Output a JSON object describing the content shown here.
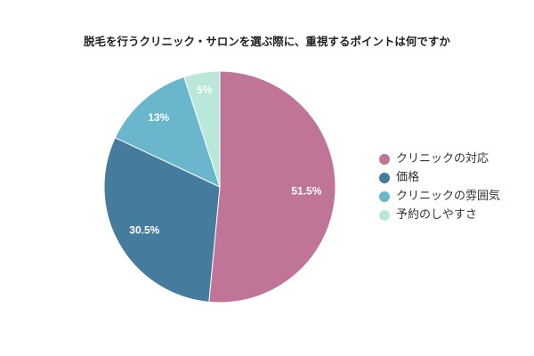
{
  "chart_data": {
    "type": "pie",
    "title": "脱毛を行うクリニック・サロンを選ぶ際に、重視するポイントは何ですか",
    "categories": [
      "クリニックの対応",
      "価格",
      "クリニックの雰囲気",
      "予約のしやすさ"
    ],
    "values": [
      51.5,
      30.5,
      13,
      5
    ],
    "data_labels": [
      "51.5%",
      "30.5%",
      "13%",
      "5%"
    ],
    "colors": [
      "#BF7498",
      "#457B9D",
      "#6AB7CD",
      "#B9E8DA"
    ],
    "legend": "right"
  }
}
